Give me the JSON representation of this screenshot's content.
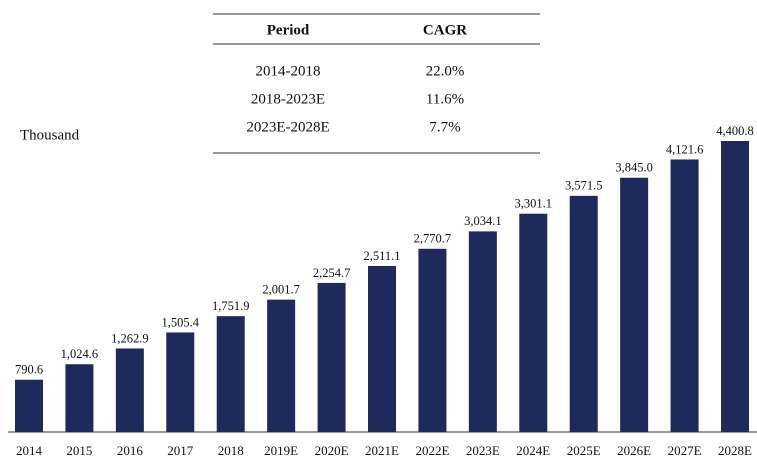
{
  "chart_data": {
    "type": "bar",
    "categories": [
      "2014",
      "2015",
      "2016",
      "2017",
      "2018",
      "2019E",
      "2020E",
      "2021E",
      "2022E",
      "2023E",
      "2024E",
      "2025E",
      "2026E",
      "2027E",
      "2028E"
    ],
    "values": [
      790.6,
      1024.6,
      1262.9,
      1505.4,
      1751.9,
      2001.7,
      2254.7,
      2511.1,
      2770.7,
      3034.1,
      3301.1,
      3571.5,
      3845.0,
      4121.6,
      4400.8
    ],
    "value_labels": [
      "790.6",
      "1,024.6",
      "1,262.9",
      "1,505.4",
      "1,751.9",
      "2,001.7",
      "2,254.7",
      "2,511.1",
      "2,770.7",
      "3,034.1",
      "3,301.1",
      "3,571.5",
      "3,845.0",
      "4,121.6",
      "4,400.8"
    ],
    "color": "#1f2a5c",
    "unit_label": "Thousand"
  },
  "table": {
    "header": [
      "Period",
      "CAGR"
    ],
    "rows": [
      [
        "2014-2018",
        "22.0%"
      ],
      [
        "2018-2023E",
        "11.6%"
      ],
      [
        "2023E-2028E",
        "7.7%"
      ]
    ]
  }
}
